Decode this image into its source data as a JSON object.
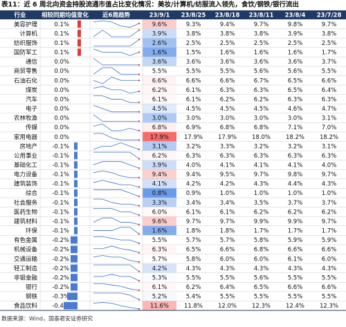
{
  "title": "表11：近 6 周北向资金持股流通市值占比变化情况：美妆/计算机/纺服流入领先，食饮/钢铁/银行流出",
  "headers": [
    "行业",
    "相较同期均值变化",
    "近6周趋势",
    "23/9/1",
    "23/8/25",
    "23/8/18",
    "23/8/11",
    "23/8/4",
    "23/7/28"
  ],
  "rows": [
    {
      "industry": "美容护理",
      "change": {
        "value": 0.1,
        "label": "0.1%"
      },
      "values": [
        "9.6%",
        "9.3%",
        "9.4%",
        "9.7%",
        "9.8%",
        "9.7%"
      ]
    },
    {
      "industry": "计算机",
      "change": {
        "value": 0.1,
        "label": "0.1%"
      },
      "values": [
        "3.9%",
        "3.8%",
        "3.8%",
        "3.8%",
        "3.9%",
        "3.8%"
      ]
    },
    {
      "industry": "纺织服饰",
      "change": {
        "value": 0.1,
        "label": "0.1%"
      },
      "values": [
        "2.6%",
        "2.5%",
        "2.5%",
        "2.5%",
        "2.5%",
        "2.5%"
      ]
    },
    {
      "industry": "国防军工",
      "change": {
        "value": 0.1,
        "label": "0.1%"
      },
      "values": [
        "1.6%",
        "1.5%",
        "1.6%",
        "1.6%",
        "1.6%",
        "1.7%"
      ]
    },
    {
      "industry": "通信",
      "change": {
        "value": 0.0,
        "label": "0.0%"
      },
      "values": [
        "3.6%",
        "3.6%",
        "3.6%",
        "3.6%",
        "3.6%",
        "3.7%"
      ]
    },
    {
      "industry": "商贸零售",
      "change": {
        "value": 0.0,
        "label": "0.0%"
      },
      "values": [
        "5.5%",
        "5.5%",
        "5.5%",
        "5.6%",
        "5.6%",
        "5.5%"
      ]
    },
    {
      "industry": "石油石化",
      "change": {
        "value": 0.0,
        "label": "0.0%"
      },
      "values": [
        "6.6%",
        "6.6%",
        "6.6%",
        "6.7%",
        "6.5%",
        "6.6%"
      ]
    },
    {
      "industry": "煤炭",
      "change": {
        "value": 0.0,
        "label": "0.0%"
      },
      "values": [
        "6.2%",
        "6.1%",
        "6.3%",
        "6.3%",
        "6.5%",
        "6.4%"
      ]
    },
    {
      "industry": "汽车",
      "change": {
        "value": 0.0,
        "label": "0.0%"
      },
      "values": [
        "6.1%",
        "6.1%",
        "6.2%",
        "6.2%",
        "6.3%",
        "6.3%"
      ]
    },
    {
      "industry": "电子",
      "change": {
        "value": 0.0,
        "label": "0.0%"
      },
      "values": [
        "4.5%",
        "4.5%",
        "4.5%",
        "4.5%",
        "4.6%",
        "4.7%"
      ]
    },
    {
      "industry": "农林牧渔",
      "change": {
        "value": 0.0,
        "label": "0.0%"
      },
      "values": [
        "3.0%",
        "3.0%",
        "3.0%",
        "3.0%",
        "3.0%",
        "3.1%"
      ]
    },
    {
      "industry": "传媒",
      "change": {
        "value": 0.0,
        "label": "0.0%"
      },
      "values": [
        "6.8%",
        "6.9%",
        "6.8%",
        "6.8%",
        "7.1%",
        "7.0%"
      ]
    },
    {
      "industry": "家用电器",
      "change": {
        "value": 0.0,
        "label": "0.0%"
      },
      "values": [
        "17.9%",
        "17.9%",
        "17.9%",
        "18.0%",
        "18.2%",
        "18.2%"
      ]
    },
    {
      "industry": "房地产",
      "change": {
        "value": -0.1,
        "label": "-0.1%"
      },
      "values": [
        "3.1%",
        "3.2%",
        "3.3%",
        "3.2%",
        "3.2%",
        "3.1%"
      ]
    },
    {
      "industry": "公用事业",
      "change": {
        "value": -0.1,
        "label": "-0.1%"
      },
      "values": [
        "6.2%",
        "6.3%",
        "6.3%",
        "6.3%",
        "6.3%",
        "6.3%"
      ]
    },
    {
      "industry": "基础化工",
      "change": {
        "value": -0.1,
        "label": "-0.1%"
      },
      "values": [
        "3.9%",
        "4.0%",
        "4.1%",
        "4.1%",
        "4.1%",
        "4.0%"
      ]
    },
    {
      "industry": "电力设备",
      "change": {
        "value": -0.1,
        "label": "-0.1%"
      },
      "values": [
        "9.4%",
        "9.4%",
        "9.5%",
        "9.7%",
        "9.8%",
        "9.7%"
      ]
    },
    {
      "industry": "建筑装饰",
      "change": {
        "value": -0.1,
        "label": "-0.1%"
      },
      "values": [
        "4.1%",
        "4.2%",
        "4.2%",
        "4.3%",
        "4.4%",
        "4.3%"
      ]
    },
    {
      "industry": "综合",
      "change": {
        "value": -0.1,
        "label": "-0.1%"
      },
      "values": [
        "0.8%",
        "0.9%",
        "1.0%",
        "1.0%",
        "1.0%",
        "1.0%"
      ]
    },
    {
      "industry": "社会服务",
      "change": {
        "value": -0.1,
        "label": "-0.1%"
      },
      "values": [
        "3.3%",
        "3.4%",
        "3.4%",
        "3.5%",
        "3.7%",
        "3.7%"
      ]
    },
    {
      "industry": "医药生物",
      "change": {
        "value": -0.1,
        "label": "-0.1%"
      },
      "values": [
        "6.0%",
        "6.1%",
        "6.1%",
        "6.2%",
        "6.2%",
        "6.2%"
      ]
    },
    {
      "industry": "建筑材料",
      "change": {
        "value": -0.1,
        "label": "-0.1%"
      },
      "values": [
        "9.6%",
        "9.7%",
        "9.7%",
        "9.9%",
        "9.9%",
        "9.7%"
      ]
    },
    {
      "industry": "环保",
      "change": {
        "value": -0.1,
        "label": "-0.1%"
      },
      "values": [
        "1.6%",
        "1.8%",
        "1.8%",
        "1.7%",
        "1.7%",
        "1.7%"
      ]
    },
    {
      "industry": "有色金属",
      "change": {
        "value": -0.2,
        "label": "-0.2%"
      },
      "values": [
        "5.5%",
        "5.7%",
        "5.7%",
        "5.8%",
        "5.9%",
        "5.9%"
      ]
    },
    {
      "industry": "机械设备",
      "change": {
        "value": -0.2,
        "label": "-0.2%"
      },
      "values": [
        "6.3%",
        "6.5%",
        "6.6%",
        "6.8%",
        "6.6%",
        "6.6%"
      ]
    },
    {
      "industry": "交通运输",
      "change": {
        "value": -0.2,
        "label": "-0.2%"
      },
      "values": [
        "5.7%",
        "5.8%",
        "6.0%",
        "6.0%",
        "6.1%",
        "6.0%"
      ]
    },
    {
      "industry": "轻工制造",
      "change": {
        "value": -0.2,
        "label": "-0.2%"
      },
      "values": [
        "4.2%",
        "4.3%",
        "4.3%",
        "4.3%",
        "4.3%",
        "4.3%"
      ]
    },
    {
      "industry": "非银金融",
      "change": {
        "value": -0.2,
        "label": "-0.2%"
      },
      "values": [
        "5.3%",
        "5.5%",
        "5.5%",
        "5.6%",
        "5.5%",
        "5.5%"
      ]
    },
    {
      "industry": "银行",
      "change": {
        "value": -0.2,
        "label": "-0.2%"
      },
      "values": [
        "6.1%",
        "6.2%",
        "6.4%",
        "6.5%",
        "6.6%",
        "6.6%"
      ]
    },
    {
      "industry": "钢铁",
      "change": {
        "value": -0.3,
        "label": "-0.3%"
      },
      "values": [
        "5.2%",
        "5.4%",
        "5.5%",
        "5.5%",
        "5.5%",
        "5.5%"
      ]
    },
    {
      "industry": "食品饮料",
      "change": {
        "value": -0.4,
        "label": "-0.4%"
      },
      "values": [
        "11.6%",
        "11.8%",
        "12.0%",
        "12.3%",
        "12.4%",
        "12.3%"
      ]
    }
  ],
  "source": "数据来源：Wind，国泰君安证券研究"
}
